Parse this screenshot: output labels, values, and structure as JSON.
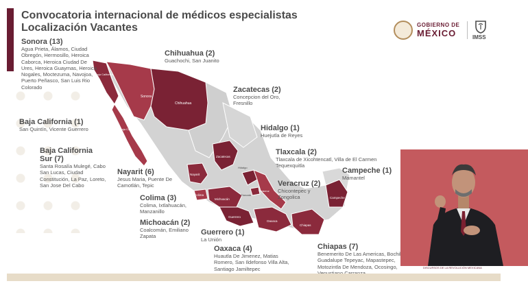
{
  "header": {
    "title_line1": "Convocatoria internacional de médicos especialistas",
    "title_line2": "Localización Vacantes"
  },
  "logo": {
    "line1": "GOBIERNO DE",
    "line2": "MÉXICO",
    "imss": "IMSS"
  },
  "states": [
    {
      "name": "Sonora (13)",
      "cities": "Agua Prieta, Álamos, Ciudad Obregón, Hermosillo, Heroica Caborca, Heroica Ciudad De Ures, Heroica Guaymas, Heroica Nogales, Moctezuma, Navojoa, Puerto Peñasco, San Luis Rio Colorado"
    },
    {
      "name": "Baja California (1)",
      "cities": "San Quintín, Vicente Guerrero"
    },
    {
      "name": "Baja California Sur (7)",
      "cities": "Santa Rosalía Mulegé, Cabo San Lucas, Ciudad Constitución, La Paz, Loreto, San Jose Del Cabo"
    },
    {
      "name": "Chihuahua (2)",
      "cities": "Guachochi, San Juanito"
    },
    {
      "name": "Zacatecas (2)",
      "cities": "Concepcion del Oro, Fresnillo"
    },
    {
      "name": "Hidalgo (1)",
      "cities": "Huejutla de Reyes"
    },
    {
      "name": "Tlaxcala (2)",
      "cities": "Tlaxcala de Xicohtencatl, Villa de El Carmen Tequexquitla"
    },
    {
      "name": "Campeche (1)",
      "cities": "Mamantel"
    },
    {
      "name": "Veracruz (2)",
      "cities": "Chicontepec y Zongolica"
    },
    {
      "name": "Nayarit (6)",
      "cities": "Jesus Maria, Puente De Camotlán, Tepic"
    },
    {
      "name": "Colima (3)",
      "cities": "Colima, Ixtlahuacán, Manzanillo"
    },
    {
      "name": "Michoacán (2)",
      "cities": "Coalcomán, Emiliano Zapata"
    },
    {
      "name": "Guerrero (1)",
      "cities": "La Unión"
    },
    {
      "name": "Oaxaca (4)",
      "cities": "Huautla De Jimenez, Matias Romero, San Ildefonso Villa Alta, Santiago Jamiltepec"
    },
    {
      "name": "Chiapas (7)",
      "cities": "Benemerito De Las Americas, Bochil, Guadalupe Tepeyac, Mapastepec, Motozintla De Mendoza, Ocosingo, Venustiano Carranza"
    }
  ],
  "map_labels": {
    "sonora": "Sonora",
    "chihuahua": "Chihuahua",
    "baja_california": "Baja California",
    "baja_california_sur": "Baja California Sur",
    "zacatecas": "Zacatecas",
    "nayarit": "Nayarit",
    "colima": "Colima",
    "michoacan": "Michoacán",
    "guerrero": "Guerrero",
    "oaxaca": "Oaxaca",
    "chiapas": "Chiapas",
    "campeche": "Campeche",
    "veracruz": "Veracruz",
    "tlaxcala": "Tlaxcala",
    "hidalgo": "Hidalgo"
  },
  "footer": {
    "caption": "DISCURSOS DE LA REVOLUCIÓN MEXICANA"
  },
  "colors": {
    "accent": "#691c32",
    "vacancy_state": "#8b2a3c",
    "vacancy_state_light": "#a63a4a",
    "other_state": "#d3d3d3",
    "interpreter_bg": "#c45a5e"
  }
}
